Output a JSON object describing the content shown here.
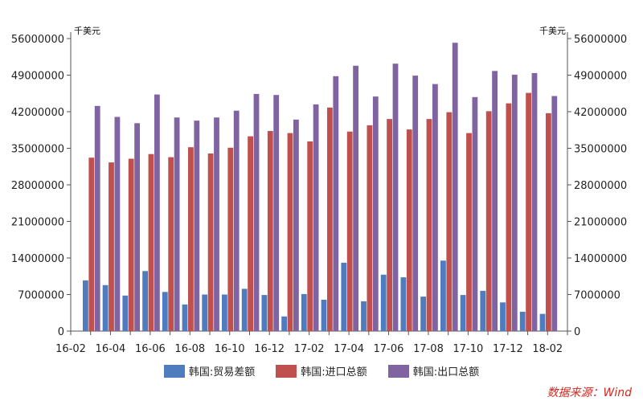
{
  "chart_data": {
    "type": "bar",
    "unit_left": "千美元",
    "unit_right": "千美元",
    "ylim": [
      0,
      56000000
    ],
    "yticks": [
      "0",
      "7000000",
      "14000000",
      "21000000",
      "28000000",
      "35000000",
      "42000000",
      "49000000",
      "56000000"
    ],
    "ytick_values": [
      0,
      7000000,
      14000000,
      21000000,
      28000000,
      35000000,
      42000000,
      49000000,
      56000000
    ],
    "categories": [
      "16-02",
      "16-03",
      "16-04",
      "16-05",
      "16-06",
      "16-07",
      "16-08",
      "16-09",
      "16-10",
      "16-11",
      "16-12",
      "17-01",
      "17-02",
      "17-03",
      "17-04",
      "17-05",
      "17-06",
      "17-07",
      "17-08",
      "17-09",
      "17-10",
      "17-11",
      "17-12",
      "18-01",
      "18-02"
    ],
    "x_tick_labels": [
      "16-02",
      "16-04",
      "16-06",
      "16-08",
      "16-10",
      "16-12",
      "17-02",
      "17-04",
      "17-06",
      "17-08",
      "17-10",
      "17-12",
      "18-02"
    ],
    "series": [
      {
        "name": "韩国:贸易差额",
        "color": "#4f7cbf",
        "values": [
          9700000,
          8800000,
          6800000,
          11500000,
          7500000,
          5100000,
          7000000,
          7000000,
          8100000,
          6900000,
          2800000,
          7100000,
          6000000,
          13100000,
          5700000,
          10800000,
          10300000,
          6600000,
          13500000,
          6900000,
          7700000,
          5500000,
          3700000,
          3300000,
          0
        ]
      },
      {
        "name": "韩国:进口总额",
        "color": "#c0504d",
        "values": [
          33200000,
          32300000,
          33000000,
          33900000,
          33300000,
          35200000,
          34000000,
          35100000,
          37300000,
          38300000,
          37900000,
          36300000,
          42800000,
          38200000,
          39400000,
          40600000,
          38600000,
          40600000,
          41900000,
          37900000,
          42100000,
          43600000,
          45600000,
          41700000,
          0
        ]
      },
      {
        "name": "韩国:出口总额",
        "color": "#8064a2",
        "values": [
          43100000,
          41000000,
          39800000,
          45300000,
          40900000,
          40300000,
          40900000,
          42200000,
          45400000,
          45200000,
          40500000,
          43400000,
          48800000,
          50800000,
          44900000,
          51200000,
          48900000,
          47300000,
          55200000,
          44800000,
          49800000,
          49100000,
          49400000,
          45000000,
          0
        ]
      }
    ],
    "legend_position": "bottom",
    "grid": false
  },
  "source": "数据来源：Wind"
}
